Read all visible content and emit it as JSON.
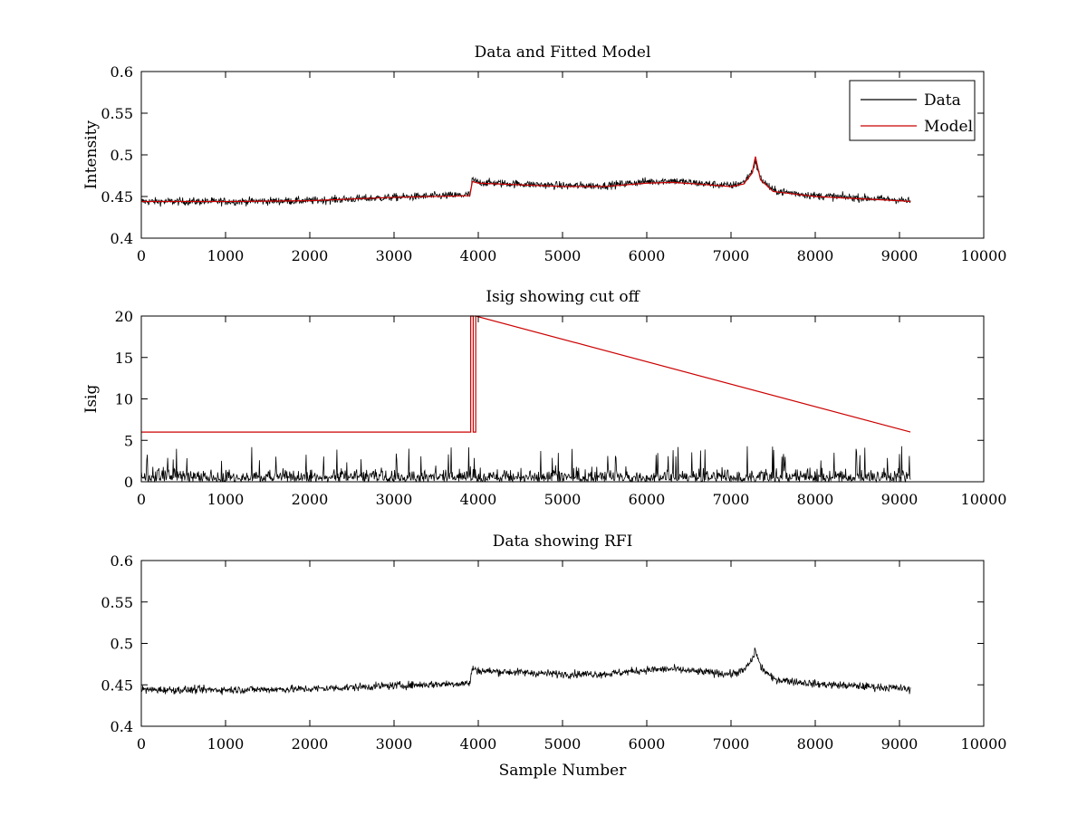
{
  "chart_data": [
    {
      "type": "line",
      "title": "Data and Fitted Model",
      "xlabel": "",
      "ylabel": "Intensity",
      "xlim": [
        0,
        10000
      ],
      "ylim": [
        0.4,
        0.6
      ],
      "xticks": [
        "0",
        "1000",
        "2000",
        "3000",
        "4000",
        "5000",
        "6000",
        "7000",
        "8000",
        "9000",
        "10000"
      ],
      "yticks": [
        "0.4",
        "0.45",
        "0.5",
        "0.55",
        "0.6"
      ],
      "grid": false,
      "legend": {
        "position": "top-right",
        "entries": [
          "Data",
          "Model"
        ]
      },
      "series": [
        {
          "name": "Data",
          "color": "#000000",
          "noise_amplitude": 0.006,
          "x": [
            0,
            1000,
            2000,
            3000,
            3900,
            3930,
            4000,
            5000,
            5500,
            6000,
            6300,
            6600,
            7000,
            7150,
            7250,
            7290,
            7350,
            7500,
            8000,
            9000,
            9130
          ],
          "y": [
            0.444,
            0.444,
            0.445,
            0.449,
            0.452,
            0.47,
            0.467,
            0.463,
            0.463,
            0.468,
            0.469,
            0.466,
            0.463,
            0.467,
            0.48,
            0.492,
            0.472,
            0.457,
            0.451,
            0.446,
            0.444
          ]
        },
        {
          "name": "Model",
          "color": "#cc0000",
          "x": [
            0,
            1000,
            2000,
            3000,
            3900,
            3930,
            4000,
            5000,
            5500,
            6000,
            6300,
            6600,
            7000,
            7150,
            7250,
            7290,
            7350,
            7500,
            8000,
            9000,
            9130
          ],
          "y": [
            0.444,
            0.444,
            0.445,
            0.449,
            0.451,
            0.468,
            0.466,
            0.462,
            0.462,
            0.466,
            0.467,
            0.465,
            0.462,
            0.465,
            0.478,
            0.498,
            0.47,
            0.456,
            0.45,
            0.445,
            0.444
          ]
        }
      ]
    },
    {
      "type": "line",
      "title": "Isig showing cut off",
      "xlabel": "",
      "ylabel": "Isig",
      "xlim": [
        0,
        10000
      ],
      "ylim": [
        0,
        20
      ],
      "xticks": [
        "0",
        "1000",
        "2000",
        "3000",
        "4000",
        "5000",
        "6000",
        "7000",
        "8000",
        "9000",
        "10000"
      ],
      "yticks": [
        "0",
        "5",
        "10",
        "15",
        "20"
      ],
      "grid": false,
      "series": [
        {
          "color": "#000000",
          "kind": "abs-noise",
          "x_range": [
            0,
            9130
          ],
          "typical_max": 2.5,
          "peak_max": 4.3
        },
        {
          "color": "#cc0000",
          "x": [
            0,
            3910,
            3910,
            3940,
            3940,
            3970,
            3970,
            9130
          ],
          "y": [
            6,
            6,
            20,
            20,
            6,
            6,
            20,
            6
          ]
        }
      ]
    },
    {
      "type": "line",
      "title": "Data showing RFI",
      "xlabel": "Sample Number",
      "ylabel": "",
      "xlim": [
        0,
        10000
      ],
      "ylim": [
        0.4,
        0.6
      ],
      "xticks": [
        "0",
        "1000",
        "2000",
        "3000",
        "4000",
        "5000",
        "6000",
        "7000",
        "8000",
        "9000",
        "10000"
      ],
      "yticks": [
        "0.4",
        "0.45",
        "0.5",
        "0.55",
        "0.6"
      ],
      "grid": false,
      "series": [
        {
          "color": "#000000",
          "noise_amplitude": 0.006,
          "x": [
            0,
            1000,
            2000,
            3000,
            3900,
            3930,
            4000,
            5000,
            5500,
            6000,
            6300,
            6600,
            7000,
            7150,
            7250,
            7290,
            7350,
            7500,
            8000,
            9000,
            9130
          ],
          "y": [
            0.444,
            0.444,
            0.445,
            0.449,
            0.452,
            0.47,
            0.467,
            0.463,
            0.463,
            0.468,
            0.469,
            0.466,
            0.463,
            0.467,
            0.48,
            0.492,
            0.472,
            0.457,
            0.451,
            0.446,
            0.444
          ]
        }
      ]
    }
  ]
}
